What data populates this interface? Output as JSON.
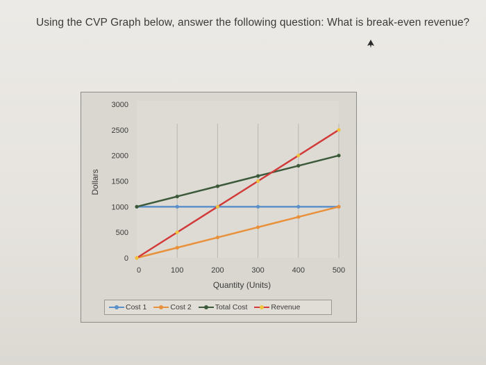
{
  "question": "Using the CVP Graph below, answer the following question: What is break-even revenue?",
  "cursor_icon": "mouse-pointer-icon",
  "chart_data": {
    "type": "line",
    "title": "",
    "xlabel": "Quantity (Units)",
    "ylabel": "Dollars",
    "x": [
      0,
      100,
      200,
      300,
      400,
      500
    ],
    "x_tick_labels": [
      "0",
      "100",
      "200",
      "300",
      "400",
      "500"
    ],
    "y_tick_labels": [
      "0",
      "500",
      "1000",
      "1500",
      "2000",
      "2500",
      "3000"
    ],
    "xlim": [
      0,
      500
    ],
    "ylim": [
      0,
      3000
    ],
    "grid": "vertical",
    "legend_position": "bottom",
    "series": [
      {
        "name": "Cost 1",
        "color": "#5b8fc9",
        "values": [
          1000,
          1000,
          1000,
          1000,
          1000,
          1000
        ]
      },
      {
        "name": "Cost 2",
        "color": "#e8913a",
        "values": [
          0,
          200,
          400,
          600,
          800,
          1000
        ]
      },
      {
        "name": "Total Cost",
        "color": "#3c5a3a",
        "values": [
          1000,
          1200,
          1400,
          1600,
          1800,
          2000
        ]
      },
      {
        "name": "Revenue",
        "color": "#d23a3a",
        "marker_color": "#f0c23a",
        "values": [
          0,
          500,
          1000,
          1500,
          2000,
          2500
        ]
      }
    ]
  }
}
